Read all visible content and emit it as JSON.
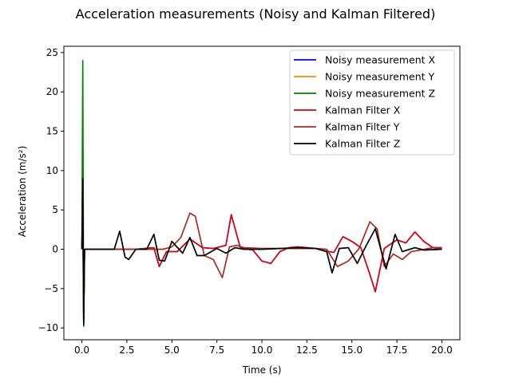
{
  "chart_data": {
    "type": "line",
    "title": "Acceleration measurements (Noisy and Kalman Filtered)",
    "xlabel": "Time (s)",
    "ylabel": "Acceleration (m/s²)",
    "xlim": [
      -1.0,
      21.0
    ],
    "ylim": [
      -11.5,
      25.8
    ],
    "x_ticks": [
      {
        "value": 0.0,
        "label": "0.0"
      },
      {
        "value": 2.5,
        "label": "2.5"
      },
      {
        "value": 5.0,
        "label": "5.0"
      },
      {
        "value": 7.5,
        "label": "7.5"
      },
      {
        "value": 10.0,
        "label": "10.0"
      },
      {
        "value": 12.5,
        "label": "12.5"
      },
      {
        "value": 15.0,
        "label": "15.0"
      },
      {
        "value": 17.5,
        "label": "17.5"
      },
      {
        "value": 20.0,
        "label": "20.0"
      }
    ],
    "y_ticks": [
      {
        "value": -10,
        "label": "−10"
      },
      {
        "value": -5,
        "label": "−5"
      },
      {
        "value": 0,
        "label": "0"
      },
      {
        "value": 5,
        "label": "5"
      },
      {
        "value": 10,
        "label": "10"
      },
      {
        "value": 15,
        "label": "15"
      },
      {
        "value": 20,
        "label": "20"
      },
      {
        "value": 25,
        "label": "25"
      }
    ],
    "grid": false,
    "legend_position": "top-right",
    "series": [
      {
        "name": "Noisy measurement X",
        "color": "#0000ff",
        "x": [
          0,
          0.05,
          0.1,
          0.15,
          0.3,
          1.0,
          2.0,
          3.0,
          4.0,
          4.3,
          4.7,
          5.3,
          6.0,
          6.7,
          7.3,
          8.0,
          8.3,
          8.8,
          9.5,
          10.0,
          10.5,
          11.0,
          11.5,
          12.0,
          12.5,
          13.0,
          13.5,
          14.0,
          14.5,
          15.0,
          15.5,
          16.0,
          16.3,
          16.8,
          17.5,
          18.0,
          18.5,
          19.0,
          19.5,
          20.0
        ],
        "y": [
          0,
          8.0,
          -9.5,
          0,
          0,
          0,
          0,
          0,
          0.2,
          -2.2,
          -0.3,
          -0.3,
          1.3,
          0.2,
          0.1,
          0.5,
          4.4,
          0.2,
          -0.1,
          -1.5,
          -1.8,
          -0.3,
          0.2,
          0.3,
          0.2,
          0.1,
          -0.2,
          -0.4,
          1.6,
          1.0,
          0.2,
          -3.2,
          -5.4,
          0.1,
          1.2,
          0.8,
          2.2,
          1.0,
          0.2,
          0.2
        ]
      },
      {
        "name": "Noisy measurement Y",
        "color": "#ff8c00",
        "x": [
          0,
          0.05,
          0.1,
          0.15,
          0.3,
          1.0,
          2.0,
          3.0,
          4.0,
          4.5,
          5.0,
          5.5,
          6.0,
          6.3,
          6.8,
          7.3,
          7.8,
          8.2,
          8.6,
          9.0,
          10.0,
          11.0,
          12.0,
          13.0,
          13.6,
          14.2,
          14.8,
          15.4,
          16.0,
          16.4,
          16.8,
          17.3,
          17.8,
          18.3,
          18.8,
          19.5,
          20.0
        ],
        "y": [
          0,
          4.0,
          -9.0,
          0,
          0,
          0,
          0,
          0,
          0,
          0,
          0.3,
          1.5,
          4.6,
          4.2,
          -0.8,
          -1.3,
          -3.6,
          0.3,
          0.5,
          0.2,
          0.1,
          0.1,
          0.1,
          0.1,
          0.0,
          -2.2,
          -1.5,
          0.1,
          3.5,
          2.6,
          -2.2,
          -0.6,
          -1.3,
          -0.3,
          -0.1,
          0.2,
          0.0
        ]
      },
      {
        "name": "Noisy measurement Z",
        "color": "#008000",
        "x": [
          0,
          0.05,
          0.1,
          0.15,
          0.3,
          1.0,
          1.8,
          2.1,
          2.4,
          2.6,
          3.0,
          3.6,
          4.0,
          4.3,
          4.6,
          5.0,
          5.6,
          6.0,
          6.4,
          6.8,
          7.5,
          8.0,
          8.5,
          9.0,
          10.0,
          11.0,
          12.0,
          13.0,
          13.6,
          13.9,
          14.3,
          14.8,
          15.3,
          15.8,
          16.3,
          16.9,
          17.4,
          17.8,
          18.5,
          19.0,
          20.0
        ],
        "y": [
          0,
          24.0,
          -9.8,
          0,
          0,
          0,
          0.0,
          2.3,
          -1.0,
          -1.3,
          0.0,
          0.0,
          1.9,
          -1.4,
          -1.5,
          1.0,
          -0.5,
          1.5,
          -0.8,
          -0.8,
          0.1,
          -0.5,
          0.2,
          0.0,
          0.0,
          0.1,
          0.2,
          0.1,
          -0.3,
          -3.0,
          0.1,
          0.2,
          -1.8,
          0.5,
          2.6,
          -2.5,
          1.9,
          -0.3,
          0.2,
          -0.1,
          0.0
        ]
      },
      {
        "name": "Kalman Filter X",
        "color": "#e00000",
        "x": [
          0,
          0.05,
          0.1,
          0.15,
          0.3,
          1.0,
          2.0,
          3.0,
          4.0,
          4.3,
          4.7,
          5.3,
          6.0,
          6.7,
          7.3,
          8.0,
          8.3,
          8.8,
          9.5,
          10.0,
          10.5,
          11.0,
          11.5,
          12.0,
          12.5,
          13.0,
          13.5,
          14.0,
          14.5,
          15.0,
          15.5,
          16.0,
          16.3,
          16.8,
          17.5,
          18.0,
          18.5,
          19.0,
          19.5,
          20.0
        ],
        "y": [
          0,
          7.5,
          -9.3,
          0,
          0,
          0,
          0,
          0,
          0.2,
          -2.2,
          -0.3,
          -0.3,
          1.3,
          0.2,
          0.1,
          0.5,
          4.4,
          0.2,
          -0.1,
          -1.5,
          -1.8,
          -0.3,
          0.2,
          0.3,
          0.2,
          0.1,
          -0.2,
          -0.4,
          1.6,
          1.0,
          0.2,
          -3.2,
          -5.4,
          0.1,
          1.2,
          0.8,
          2.2,
          1.0,
          0.2,
          0.2
        ]
      },
      {
        "name": "Kalman Filter Y",
        "color": "#a52a2a",
        "x": [
          0,
          0.05,
          0.1,
          0.15,
          0.3,
          1.0,
          2.0,
          3.0,
          4.0,
          4.5,
          5.0,
          5.5,
          6.0,
          6.3,
          6.8,
          7.3,
          7.8,
          8.2,
          8.6,
          9.0,
          10.0,
          11.0,
          12.0,
          13.0,
          13.6,
          14.2,
          14.8,
          15.4,
          16.0,
          16.4,
          16.8,
          17.3,
          17.8,
          18.3,
          18.8,
          19.5,
          20.0
        ],
        "y": [
          0,
          3.8,
          -9.0,
          0,
          0,
          0,
          0,
          0,
          0,
          0,
          0.3,
          1.5,
          4.6,
          4.2,
          -0.8,
          -1.3,
          -3.6,
          0.3,
          0.5,
          0.2,
          0.1,
          0.1,
          0.1,
          0.1,
          0.0,
          -2.2,
          -1.5,
          0.1,
          3.5,
          2.6,
          -2.2,
          -0.6,
          -1.3,
          -0.3,
          -0.1,
          0.2,
          0.0
        ]
      },
      {
        "name": "Kalman Filter Z",
        "color": "#000000",
        "x": [
          0,
          0.05,
          0.1,
          0.15,
          0.3,
          1.0,
          1.8,
          2.1,
          2.4,
          2.6,
          3.0,
          3.6,
          4.0,
          4.3,
          4.6,
          5.0,
          5.6,
          6.0,
          6.4,
          6.8,
          7.5,
          8.0,
          8.5,
          9.0,
          10.0,
          11.0,
          12.0,
          13.0,
          13.6,
          13.9,
          14.3,
          14.8,
          15.3,
          15.8,
          16.3,
          16.9,
          17.4,
          17.8,
          18.5,
          19.0,
          20.0
        ],
        "y": [
          0,
          9.0,
          -9.6,
          0,
          0,
          0,
          0.0,
          2.3,
          -1.0,
          -1.3,
          0.0,
          0.0,
          1.9,
          -1.4,
          -1.5,
          1.0,
          -0.5,
          1.5,
          -0.8,
          -0.8,
          0.1,
          -0.5,
          0.2,
          0.0,
          0.0,
          0.1,
          0.2,
          0.1,
          -0.3,
          -3.0,
          0.1,
          0.2,
          -1.8,
          0.5,
          2.6,
          -2.5,
          1.9,
          -0.3,
          0.2,
          -0.1,
          0.0
        ]
      }
    ]
  }
}
